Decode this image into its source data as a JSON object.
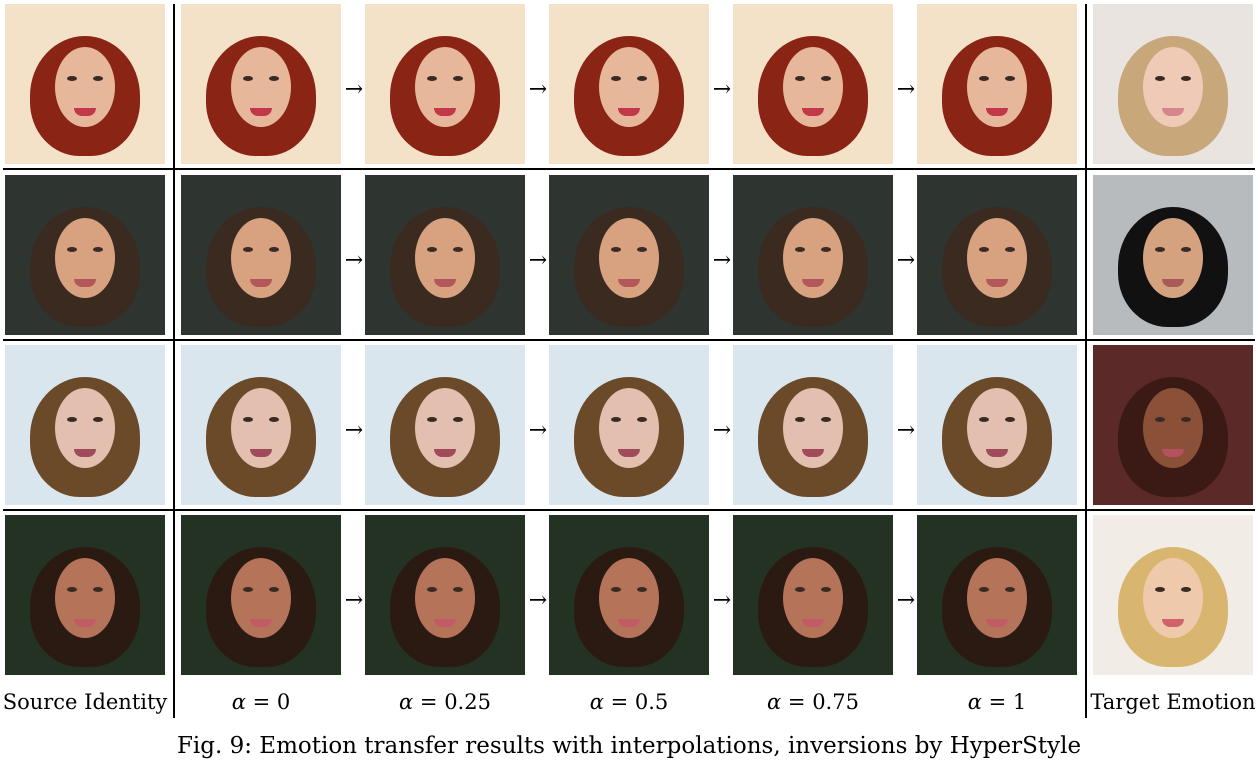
{
  "caption": "Fig. 9: Emotion transfer results with interpolations, inversions by HyperStyle",
  "column_labels": {
    "source": "Source Identity",
    "alpha_symbol": "α",
    "alpha_values": [
      "= 0",
      "= 0.25",
      "= 0.5",
      "= 0.75",
      "= 1"
    ],
    "target": "Target Emotion"
  },
  "arrow_glyph": "→",
  "rows": [
    {
      "bg": "#f4e2c8",
      "hair": "#8a2414",
      "skin": "#e7b79c",
      "lip": "#c2374a",
      "target": {
        "bg": "#e9e4e0",
        "hair": "#c8a77a",
        "skin": "#efcbb7",
        "lip": "#d7848a"
      }
    },
    {
      "bg": "#2e3430",
      "hair": "#3a2a20",
      "skin": "#d8a281",
      "lip": "#b3575a",
      "target": {
        "bg": "#b7bbbd",
        "hair": "#111111",
        "skin": "#d5a27f",
        "lip": "#a85a56"
      }
    },
    {
      "bg": "#d9e6ee",
      "hair": "#6b4a2a",
      "skin": "#e2bfae",
      "lip": "#a04a5a",
      "target": {
        "bg": "#5b2a28",
        "hair": "#3b1a16",
        "skin": "#8a5138",
        "lip": "#b5515c"
      }
    },
    {
      "bg": "#233222",
      "hair": "#2a1a12",
      "skin": "#b5745a",
      "lip": "#c05d64",
      "target": {
        "bg": "#f1ece6",
        "hair": "#d8b670",
        "skin": "#efc9ac",
        "lip": "#d0626c"
      }
    }
  ]
}
